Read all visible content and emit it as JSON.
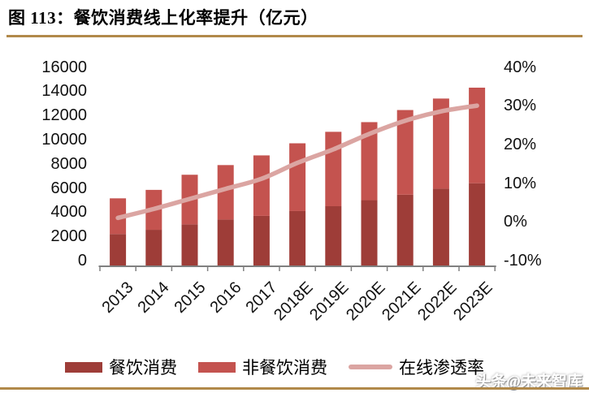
{
  "header": {
    "figure_label": "图 113：",
    "title": "餐饮消费线上化率提升（亿元）"
  },
  "watermark": "头条@未来智库",
  "colors": {
    "catering_bar": "#9e3d38",
    "non_catering_bar": "#c4534f",
    "penetration_line": "#dba5a2",
    "gold_rule": "#b1894a",
    "axis_line": "#808080",
    "tick_text": "#111111"
  },
  "chart_data": {
    "type": "combo_stacked_bar_line",
    "title": "餐饮消费线上化率提升（亿元）",
    "categories": [
      "2013",
      "2014",
      "2015",
      "2016",
      "2017",
      "2018E",
      "2019E",
      "2020E",
      "2021E",
      "2022E",
      "2023E"
    ],
    "series": [
      {
        "name": "餐饮消费",
        "type": "bar",
        "stack": "total",
        "color": "#9e3d38",
        "values": [
          2600,
          2950,
          3400,
          3800,
          4100,
          4500,
          4900,
          5400,
          5850,
          6350,
          6800
        ]
      },
      {
        "name": "非餐饮消费",
        "type": "bar",
        "stack": "total",
        "color": "#c4534f",
        "values": [
          2950,
          3300,
          4100,
          4500,
          5000,
          5600,
          6150,
          6450,
          7000,
          7450,
          7900
        ]
      },
      {
        "name": "在线渗透率",
        "type": "line",
        "axis": "right",
        "color": "#dba5a2",
        "values_percent": [
          2.3,
          4.6,
          7.2,
          9.8,
          12.4,
          16.5,
          20.0,
          24.0,
          27.4,
          29.8,
          31.3
        ]
      }
    ],
    "stack_totals": [
      5550,
      6250,
      7500,
      8300,
      9100,
      10100,
      11050,
      11850,
      12850,
      13800,
      14700
    ],
    "left_axis": {
      "min": 0,
      "max": 16000,
      "step": 2000,
      "tick_labels": [
        "0",
        "2000",
        "4000",
        "6000",
        "8000",
        "10000",
        "12000",
        "14000",
        "16000"
      ]
    },
    "right_axis": {
      "min": -10,
      "max": 40,
      "step": 10,
      "tick_labels": [
        "-10%",
        "0%",
        "10%",
        "20%",
        "30%",
        "40%"
      ]
    },
    "legend_position": "bottom",
    "grid": false
  }
}
